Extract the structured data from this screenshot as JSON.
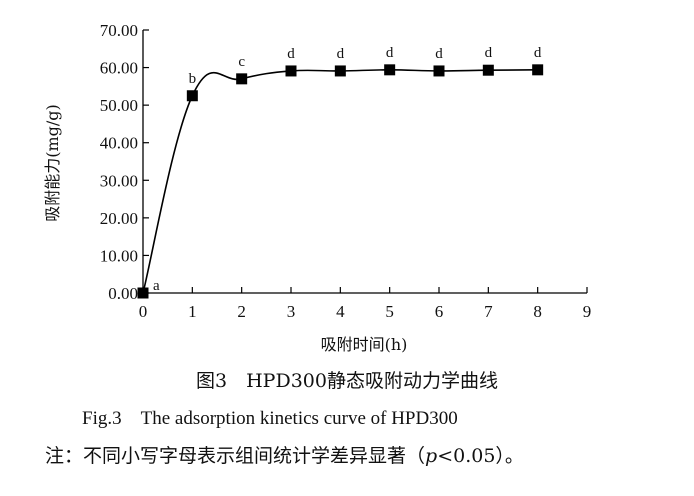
{
  "chart_data": {
    "type": "line",
    "x": [
      0,
      1,
      2,
      3,
      4,
      5,
      6,
      7,
      8
    ],
    "series": [
      {
        "values": [
          0.0,
          52.5,
          57.0,
          59.1,
          59.1,
          59.4,
          59.1,
          59.3,
          59.4
        ],
        "labels": [
          "a",
          "b",
          "c",
          "d",
          "d",
          "d",
          "d",
          "d",
          "d"
        ]
      }
    ],
    "xlabel": "吸附时间(h)",
    "ylabel": "吸附能力(mg/g)",
    "xlim": [
      0,
      9
    ],
    "ylim": [
      0,
      70
    ],
    "xticks": [
      0,
      1,
      2,
      3,
      4,
      5,
      6,
      7,
      8,
      9
    ],
    "yticks": [
      0,
      10,
      20,
      30,
      40,
      50,
      60,
      70
    ],
    "ytick_labels": [
      "0.00",
      "10.00",
      "20.00",
      "30.00",
      "40.00",
      "50.00",
      "60.00",
      "70.00"
    ],
    "grid": false,
    "marker": "square",
    "line_color": "#000000"
  },
  "captions": {
    "cn_title": "图3　HPD300静态吸附动力学曲线",
    "en_title": "Fig.3　The adsorption kinetics curve of HPD300",
    "note_prefix": "注：不同小写字母表示组间统计学差异显著（",
    "note_italic": "p",
    "note_suffix": "<0.05）。"
  }
}
